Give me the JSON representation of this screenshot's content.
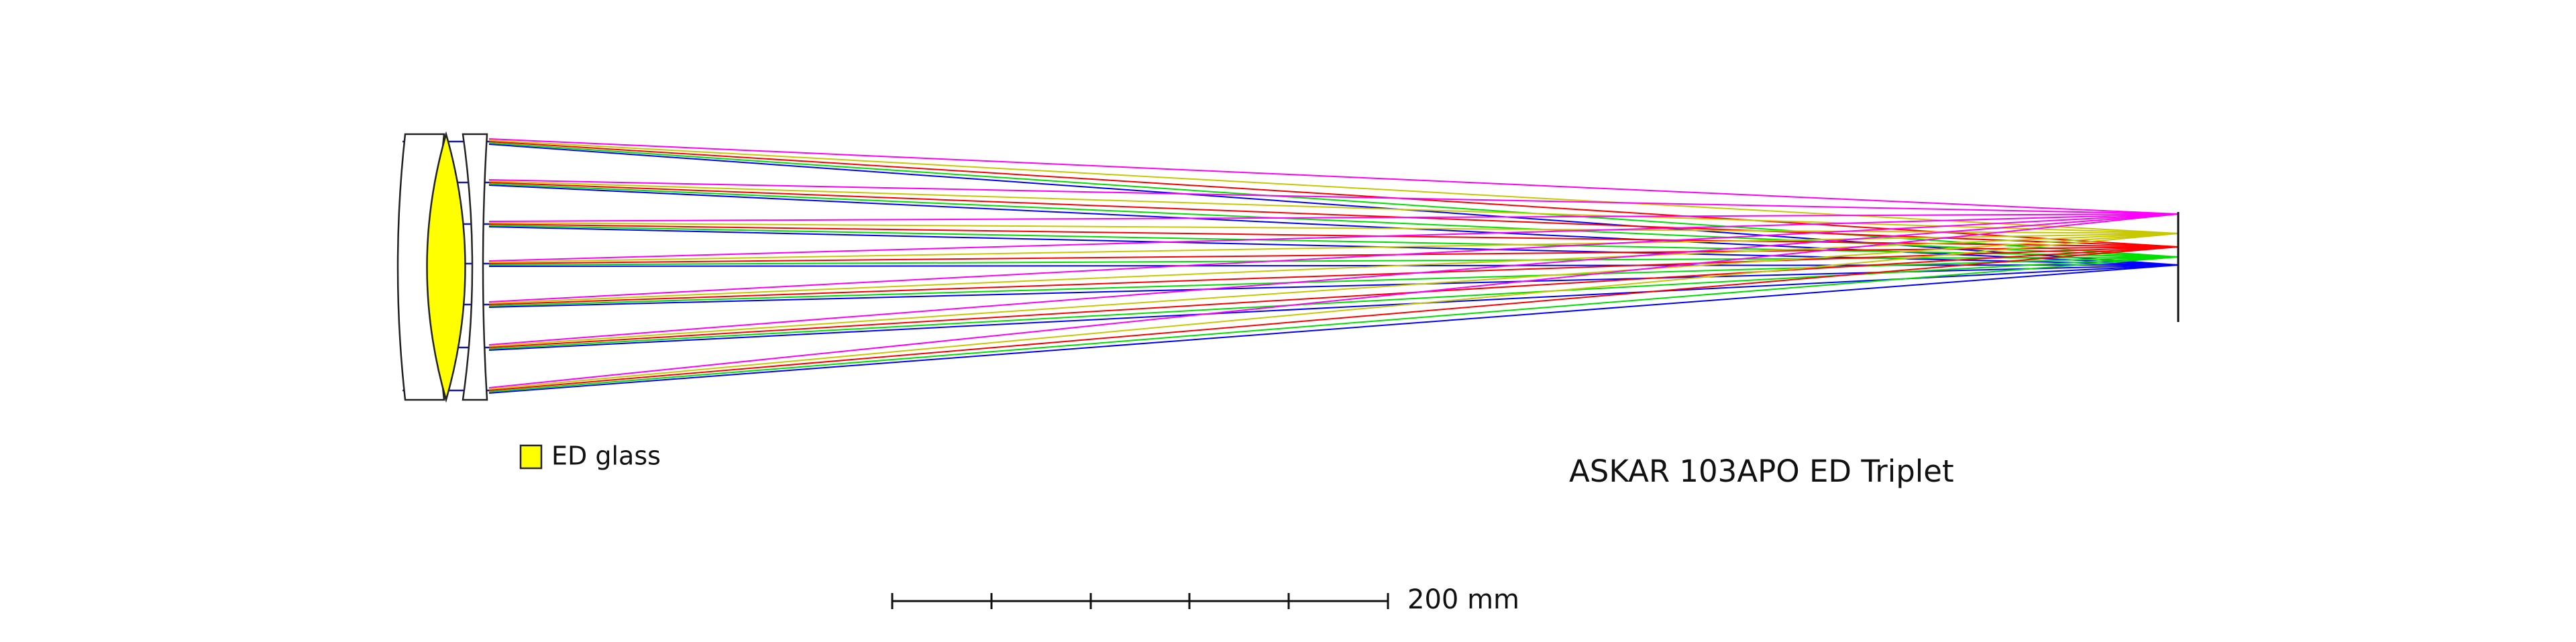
{
  "legend": {
    "label": "ED glass"
  },
  "title": "ASKAR 103APO ED Triplet",
  "scale_bar": {
    "label": "200 mm"
  }
}
